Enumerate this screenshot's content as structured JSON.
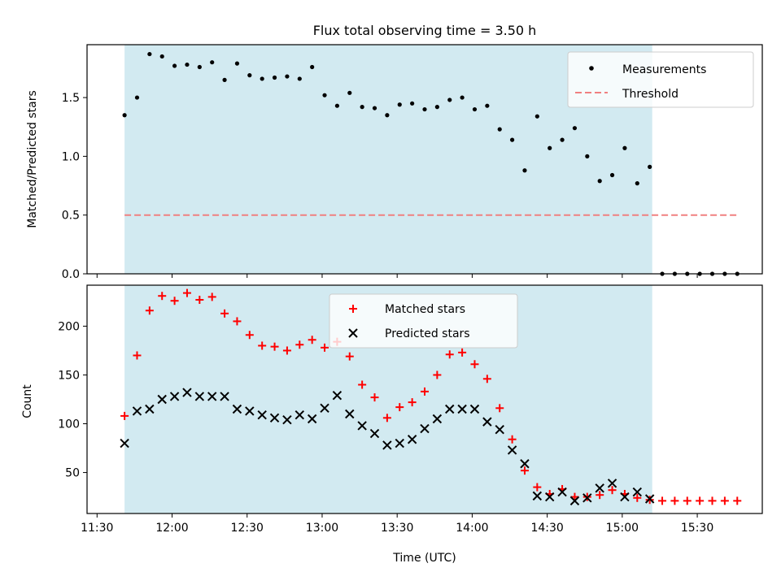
{
  "chart_data": {
    "title": "Flux total observing time = 3.50 h",
    "xlabel": "Time (UTC)",
    "x_ticks": [
      "11:30",
      "12:00",
      "12:30",
      "13:00",
      "13:30",
      "14:00",
      "14:30",
      "15:00",
      "15:30"
    ],
    "x_range": [
      "11:26",
      "15:56"
    ],
    "shaded_interval": [
      "11:41",
      "15:12"
    ],
    "colors": {
      "shade": "#add8e6",
      "measurement": "#000000",
      "threshold": "#f08080",
      "matched": "#ff0000",
      "predicted": "#000000"
    },
    "times": [
      "11:41",
      "11:46",
      "11:51",
      "11:56",
      "12:01",
      "12:06",
      "12:11",
      "12:16",
      "12:21",
      "12:26",
      "12:31",
      "12:36",
      "12:41",
      "12:46",
      "12:51",
      "12:56",
      "13:01",
      "13:06",
      "13:11",
      "13:16",
      "13:21",
      "13:26",
      "13:31",
      "13:36",
      "13:41",
      "13:46",
      "13:51",
      "13:56",
      "14:01",
      "14:06",
      "14:11",
      "14:16",
      "14:21",
      "14:26",
      "14:31",
      "14:36",
      "14:41",
      "14:46",
      "14:51",
      "14:56",
      "15:01",
      "15:06",
      "15:11",
      "15:16",
      "15:21",
      "15:26",
      "15:31",
      "15:36",
      "15:41",
      "15:46"
    ],
    "panels": [
      {
        "type": "scatter",
        "ylabel": "Matched/Predicted stars",
        "ylim": [
          0,
          1.95
        ],
        "yticks": [
          "0.0",
          "0.5",
          "1.0",
          "1.5"
        ],
        "grid": false,
        "legend_position": "upper right",
        "series": [
          {
            "name": "Measurements",
            "values": [
              1.35,
              1.5,
              1.87,
              1.85,
              1.77,
              1.78,
              1.76,
              1.8,
              1.65,
              1.79,
              1.69,
              1.66,
              1.67,
              1.68,
              1.66,
              1.76,
              1.52,
              1.43,
              1.54,
              1.42,
              1.41,
              1.35,
              1.44,
              1.45,
              1.4,
              1.42,
              1.48,
              1.5,
              1.4,
              1.43,
              1.23,
              1.14,
              0.88,
              1.34,
              1.07,
              1.14,
              1.24,
              1.0,
              0.79,
              0.84,
              1.07,
              0.77,
              0.91,
              0.0,
              0.0,
              0.0,
              0.0,
              0.0,
              0.0,
              0.0
            ]
          }
        ],
        "threshold": {
          "name": "Threshold",
          "value": 0.5
        }
      },
      {
        "type": "scatter",
        "ylabel": "Count",
        "ylim": [
          8,
          242
        ],
        "yticks": [
          "50",
          "100",
          "150",
          "200"
        ],
        "grid": false,
        "legend_position": "upper center",
        "series": [
          {
            "name": "Matched stars",
            "values": [
              108,
              170,
              216,
              231,
              226,
              234,
              227,
              230,
              213,
              205,
              191,
              180,
              179,
              175,
              181,
              186,
              178,
              184,
              169,
              140,
              127,
              106,
              117,
              122,
              133,
              150,
              171,
              173,
              161,
              146,
              116,
              84,
              52,
              35,
              28,
              33,
              25,
              25,
              27,
              32,
              28,
              24,
              22,
              21,
              21,
              21,
              21,
              21,
              21,
              21
            ]
          },
          {
            "name": "Predicted stars",
            "values": [
              80,
              113,
              115,
              125,
              128,
              132,
              128,
              128,
              128,
              115,
              113,
              109,
              106,
              104,
              109,
              105,
              116,
              129,
              110,
              98,
              90,
              78,
              80,
              84,
              95,
              105,
              115,
              115,
              115,
              102,
              94,
              73,
              59,
              26,
              25,
              30,
              21,
              24,
              34,
              39,
              25,
              30,
              23,
              null,
              null,
              null,
              null,
              null,
              null,
              null
            ]
          }
        ]
      }
    ]
  }
}
